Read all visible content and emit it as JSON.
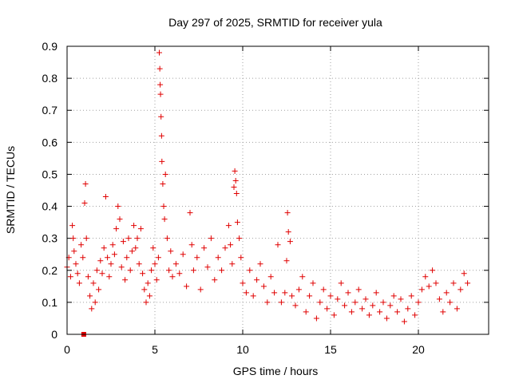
{
  "chart_data": {
    "type": "scatter",
    "title": "Day 297 of 2025, SRMTID for receiver yula",
    "xlabel": "GPS time / hours",
    "ylabel": "SRMTID / TECUs",
    "xlim": [
      0,
      24
    ],
    "ylim": [
      0,
      0.9
    ],
    "xticks": [
      0,
      5,
      10,
      15,
      20
    ],
    "xtick_labels": [
      "0",
      "5",
      "10",
      "15",
      "20"
    ],
    "yticks": [
      0,
      0.1,
      0.2,
      0.3,
      0.4,
      0.5,
      0.6,
      0.7,
      0.8,
      0.9
    ],
    "ytick_labels": [
      "0",
      "0.1",
      "0.2",
      "0.3",
      "0.4",
      "0.5",
      "0.6",
      "0.7",
      "0.8",
      "0.9"
    ],
    "grid": true,
    "marker": "+",
    "color": "#e00000",
    "series": [
      {
        "name": "SRMTID",
        "points": [
          [
            0.0,
            0.21
          ],
          [
            0.1,
            0.24
          ],
          [
            0.2,
            0.18
          ],
          [
            0.3,
            0.34
          ],
          [
            0.35,
            0.3
          ],
          [
            0.4,
            0.26
          ],
          [
            0.5,
            0.22
          ],
          [
            0.6,
            0.19
          ],
          [
            0.7,
            0.16
          ],
          [
            0.8,
            0.28
          ],
          [
            0.9,
            0.24
          ],
          [
            1.0,
            0.41
          ],
          [
            1.05,
            0.47
          ],
          [
            1.1,
            0.3
          ],
          [
            1.2,
            0.18
          ],
          [
            1.3,
            0.12
          ],
          [
            1.4,
            0.08
          ],
          [
            1.5,
            0.16
          ],
          [
            1.6,
            0.1
          ],
          [
            1.7,
            0.2
          ],
          [
            1.8,
            0.14
          ],
          [
            1.9,
            0.23
          ],
          [
            2.0,
            0.19
          ],
          [
            2.1,
            0.27
          ],
          [
            2.2,
            0.43
          ],
          [
            2.3,
            0.24
          ],
          [
            2.4,
            0.18
          ],
          [
            2.5,
            0.22
          ],
          [
            2.6,
            0.28
          ],
          [
            2.7,
            0.25
          ],
          [
            2.8,
            0.33
          ],
          [
            2.9,
            0.4
          ],
          [
            3.0,
            0.36
          ],
          [
            3.1,
            0.21
          ],
          [
            3.2,
            0.29
          ],
          [
            3.3,
            0.17
          ],
          [
            3.4,
            0.24
          ],
          [
            3.5,
            0.3
          ],
          [
            3.6,
            0.2
          ],
          [
            3.7,
            0.26
          ],
          [
            3.8,
            0.34
          ],
          [
            3.9,
            0.27
          ],
          [
            4.0,
            0.3
          ],
          [
            4.1,
            0.22
          ],
          [
            4.2,
            0.33
          ],
          [
            4.3,
            0.19
          ],
          [
            4.4,
            0.14
          ],
          [
            4.5,
            0.1
          ],
          [
            4.6,
            0.16
          ],
          [
            4.7,
            0.12
          ],
          [
            4.8,
            0.2
          ],
          [
            4.9,
            0.27
          ],
          [
            5.0,
            0.22
          ],
          [
            5.1,
            0.17
          ],
          [
            5.2,
            0.24
          ],
          [
            5.25,
            0.88
          ],
          [
            5.28,
            0.83
          ],
          [
            5.3,
            0.78
          ],
          [
            5.32,
            0.75
          ],
          [
            5.35,
            0.68
          ],
          [
            5.38,
            0.62
          ],
          [
            5.4,
            0.54
          ],
          [
            5.45,
            0.47
          ],
          [
            5.5,
            0.4
          ],
          [
            5.55,
            0.36
          ],
          [
            5.6,
            0.5
          ],
          [
            5.7,
            0.3
          ],
          [
            5.8,
            0.2
          ],
          [
            5.9,
            0.26
          ],
          [
            6.0,
            0.18
          ],
          [
            6.2,
            0.22
          ],
          [
            6.4,
            0.19
          ],
          [
            6.6,
            0.25
          ],
          [
            6.8,
            0.15
          ],
          [
            7.0,
            0.38
          ],
          [
            7.1,
            0.28
          ],
          [
            7.2,
            0.2
          ],
          [
            7.4,
            0.24
          ],
          [
            7.6,
            0.14
          ],
          [
            7.8,
            0.27
          ],
          [
            8.0,
            0.21
          ],
          [
            8.2,
            0.3
          ],
          [
            8.4,
            0.17
          ],
          [
            8.6,
            0.24
          ],
          [
            8.8,
            0.2
          ],
          [
            9.0,
            0.27
          ],
          [
            9.2,
            0.34
          ],
          [
            9.3,
            0.28
          ],
          [
            9.4,
            0.22
          ],
          [
            9.5,
            0.46
          ],
          [
            9.55,
            0.51
          ],
          [
            9.6,
            0.48
          ],
          [
            9.65,
            0.44
          ],
          [
            9.7,
            0.35
          ],
          [
            9.8,
            0.3
          ],
          [
            9.9,
            0.24
          ],
          [
            10.0,
            0.16
          ],
          [
            10.2,
            0.13
          ],
          [
            10.4,
            0.2
          ],
          [
            10.6,
            0.12
          ],
          [
            10.8,
            0.17
          ],
          [
            11.0,
            0.22
          ],
          [
            11.2,
            0.15
          ],
          [
            11.4,
            0.1
          ],
          [
            11.6,
            0.18
          ],
          [
            11.8,
            0.13
          ],
          [
            12.0,
            0.28
          ],
          [
            12.2,
            0.1
          ],
          [
            12.4,
            0.13
          ],
          [
            12.5,
            0.23
          ],
          [
            12.55,
            0.38
          ],
          [
            12.6,
            0.32
          ],
          [
            12.7,
            0.29
          ],
          [
            12.8,
            0.12
          ],
          [
            13.0,
            0.09
          ],
          [
            13.2,
            0.14
          ],
          [
            13.4,
            0.18
          ],
          [
            13.6,
            0.07
          ],
          [
            13.8,
            0.12
          ],
          [
            14.0,
            0.16
          ],
          [
            14.2,
            0.05
          ],
          [
            14.4,
            0.1
          ],
          [
            14.6,
            0.14
          ],
          [
            14.8,
            0.08
          ],
          [
            15.0,
            0.12
          ],
          [
            15.2,
            0.06
          ],
          [
            15.4,
            0.11
          ],
          [
            15.6,
            0.16
          ],
          [
            15.8,
            0.09
          ],
          [
            16.0,
            0.13
          ],
          [
            16.2,
            0.07
          ],
          [
            16.4,
            0.1
          ],
          [
            16.6,
            0.14
          ],
          [
            16.8,
            0.08
          ],
          [
            17.0,
            0.11
          ],
          [
            17.2,
            0.06
          ],
          [
            17.4,
            0.09
          ],
          [
            17.6,
            0.13
          ],
          [
            17.8,
            0.07
          ],
          [
            18.0,
            0.1
          ],
          [
            18.2,
            0.05
          ],
          [
            18.4,
            0.09
          ],
          [
            18.6,
            0.12
          ],
          [
            18.8,
            0.07
          ],
          [
            19.0,
            0.11
          ],
          [
            19.2,
            0.04
          ],
          [
            19.4,
            0.08
          ],
          [
            19.6,
            0.12
          ],
          [
            19.8,
            0.06
          ],
          [
            20.0,
            0.1
          ],
          [
            20.2,
            0.14
          ],
          [
            20.4,
            0.18
          ],
          [
            20.6,
            0.15
          ],
          [
            20.8,
            0.2
          ],
          [
            21.0,
            0.16
          ],
          [
            21.2,
            0.11
          ],
          [
            21.4,
            0.07
          ],
          [
            21.6,
            0.13
          ],
          [
            21.8,
            0.1
          ],
          [
            22.0,
            0.16
          ],
          [
            22.2,
            0.08
          ],
          [
            22.4,
            0.14
          ],
          [
            22.6,
            0.19
          ],
          [
            22.8,
            0.16
          ]
        ]
      }
    ],
    "outlier_marker": {
      "x": 0.95,
      "y": 0.0,
      "shape": "square"
    }
  }
}
